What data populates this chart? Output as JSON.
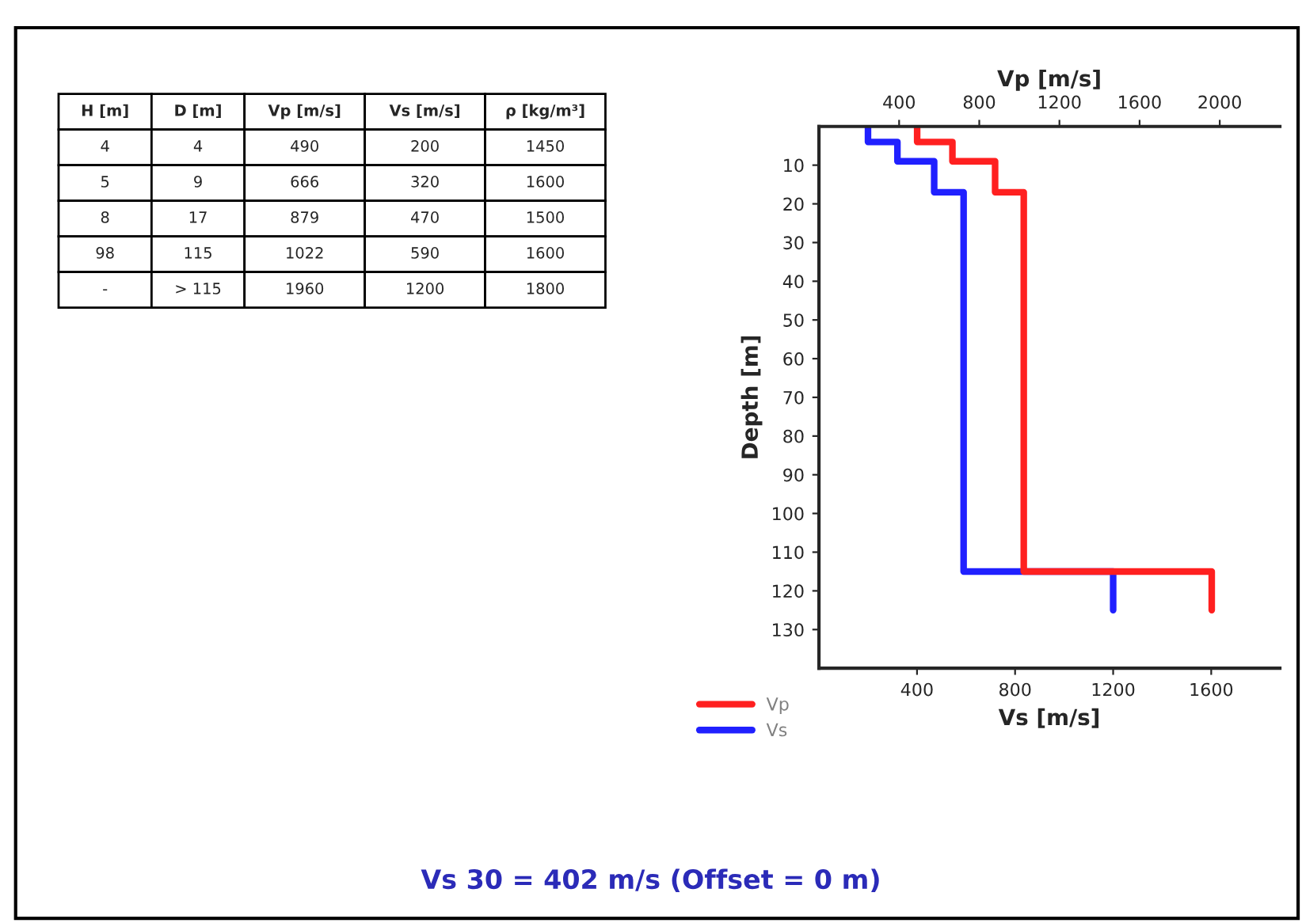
{
  "chart_data": [
    {
      "type": "other",
      "categories": [
        "H [m]",
        "D [m]",
        "Vp [m/s]",
        "Vs [m/s]",
        "ρ [kg/m³]"
      ],
      "annotations": [
        "4",
        "4",
        "490",
        "200",
        "1450",
        "5",
        "9",
        "666",
        "320",
        "1600",
        "8",
        "17",
        "879",
        "470",
        "1500",
        "98",
        "115",
        "1022",
        "590",
        "1600",
        "-",
        "> 115",
        "1960",
        "1200",
        "1800"
      ]
    },
    {
      "type": "step",
      "orientation": "horizontal",
      "xlabel": "Vs [m/s]",
      "x2label": "Vp [m/s]",
      "ylabel": "Depth [m]",
      "xlim": [
        0,
        1880
      ],
      "xticks": [
        400,
        800,
        1200,
        1600
      ],
      "x2lim": [
        0,
        2300
      ],
      "x2ticks": [
        400,
        800,
        1200,
        1600,
        2000
      ],
      "ylim": [
        140,
        0
      ],
      "yticks": [
        10,
        20,
        30,
        40,
        50,
        60,
        70,
        80,
        90,
        100,
        110,
        120,
        130
      ],
      "legend": "bottom left",
      "grid": false,
      "series": [
        {
          "name": "Vp",
          "color": "#ff2020",
          "axis": "x2",
          "x": [
            0,
            4,
            9,
            17,
            115,
            125
          ],
          "values": [
            490,
            666,
            879,
            1022,
            1960,
            1960
          ]
        },
        {
          "name": "Vs",
          "color": "#2020ff",
          "x": [
            0,
            4,
            9,
            17,
            115,
            125
          ],
          "values": [
            200,
            320,
            470,
            590,
            1200,
            1200
          ]
        }
      ],
      "annotations": [
        "Vs 30 = 402 m/s (Offset = 0 m)"
      ]
    }
  ]
}
